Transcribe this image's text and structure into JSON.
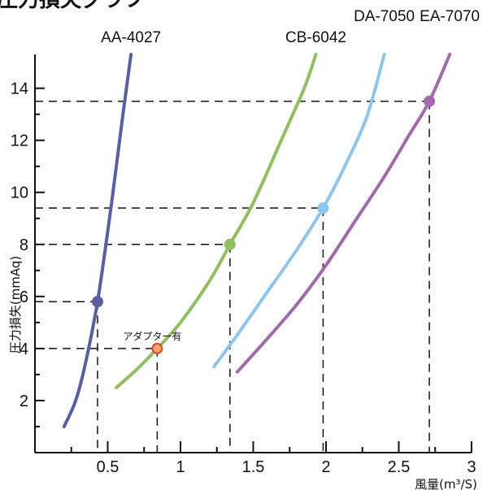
{
  "chart_data": {
    "type": "line",
    "title": "圧力損失グラフ",
    "xlabel": "風量(m³/S)",
    "ylabel": "圧力損失(mmAq)",
    "xlim": [
      0,
      3
    ],
    "ylim": [
      0,
      15.3
    ],
    "x_ticks": [
      "0.5",
      "1",
      "1.5",
      "2",
      "2.5",
      "3"
    ],
    "y_ticks": [
      "2",
      "4",
      "6",
      "8",
      "10",
      "12",
      "14"
    ],
    "grid": false,
    "series": [
      {
        "name": "AA-4027",
        "color": "#5a5fa3",
        "points": [
          [
            0.2,
            1.0
          ],
          [
            0.28,
            2.0
          ],
          [
            0.35,
            3.5
          ],
          [
            0.43,
            5.8
          ],
          [
            0.5,
            8.5
          ],
          [
            0.55,
            10.6
          ],
          [
            0.6,
            12.8
          ],
          [
            0.66,
            15.3
          ]
        ]
      },
      {
        "name": "CB-6042",
        "color": "#8fbf5e",
        "points": [
          [
            0.56,
            2.5
          ],
          [
            0.7,
            3.2
          ],
          [
            0.84,
            4.0
          ],
          [
            1.0,
            5.0
          ],
          [
            1.2,
            6.6
          ],
          [
            1.34,
            8.0
          ],
          [
            1.5,
            9.6
          ],
          [
            1.7,
            12.1
          ],
          [
            1.85,
            14.0
          ],
          [
            1.93,
            15.3
          ]
        ]
      },
      {
        "name": "DA-7050",
        "color": "#8ec5ec",
        "points": [
          [
            1.23,
            3.3
          ],
          [
            1.4,
            4.6
          ],
          [
            1.6,
            6.2
          ],
          [
            1.8,
            7.8
          ],
          [
            1.98,
            9.4
          ],
          [
            2.12,
            10.9
          ],
          [
            2.28,
            12.9
          ],
          [
            2.4,
            15.3
          ]
        ]
      },
      {
        "name": "EA-7070",
        "color": "#a06aab",
        "points": [
          [
            1.39,
            3.1
          ],
          [
            1.6,
            4.4
          ],
          [
            1.8,
            5.7
          ],
          [
            2.0,
            7.2
          ],
          [
            2.2,
            8.9
          ],
          [
            2.4,
            10.6
          ],
          [
            2.56,
            12.1
          ],
          [
            2.71,
            13.5
          ],
          [
            2.85,
            15.3
          ]
        ]
      }
    ],
    "highlight_points": [
      {
        "series": "AA-4027",
        "x": 0.43,
        "y": 5.8,
        "fill": "#5a5fa3",
        "stroke": "#5a5fa3"
      },
      {
        "series": "CB-6042",
        "x": 0.84,
        "y": 4.0,
        "fill": "#f2a66b",
        "stroke": "#d9472b",
        "label": "アダプター有"
      },
      {
        "series": "CB-6042",
        "x": 1.34,
        "y": 8.0,
        "fill": "#8fbf5e",
        "stroke": "#8fbf5e"
      },
      {
        "series": "DA-7050",
        "x": 1.98,
        "y": 9.4,
        "fill": "#8ec5ec",
        "stroke": "#8ec5ec"
      },
      {
        "series": "EA-7070",
        "x": 2.71,
        "y": 13.5,
        "fill": "#a06aab",
        "stroke": "#a06aab"
      }
    ]
  }
}
